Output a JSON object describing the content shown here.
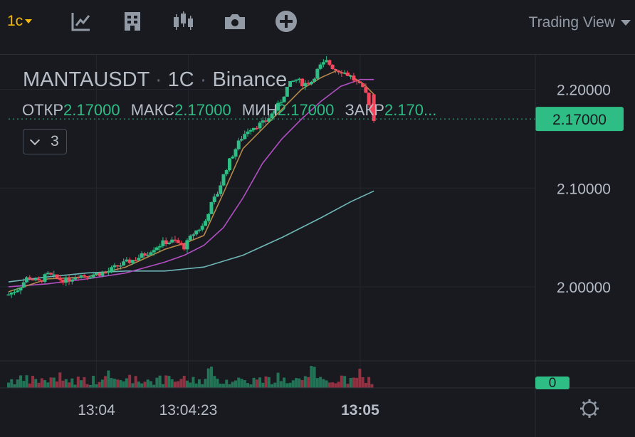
{
  "toolbar": {
    "timeframe": "1с",
    "icons": [
      "indicator-icon",
      "template-icon",
      "candle-type-icon",
      "camera-icon",
      "add-icon"
    ],
    "view_label": "Trading View"
  },
  "legend": {
    "symbol": "MANTAUSDT",
    "interval": "1С",
    "exchange": "Binance",
    "ohlc": [
      {
        "label": "ОТКР",
        "value": "2.17000"
      },
      {
        "label": "МАКС",
        "value": "2.17000"
      },
      {
        "label": "МИН",
        "value": "2.17000"
      },
      {
        "label": "ЗАКР",
        "value": "2.170..."
      }
    ],
    "indicator_count": "3"
  },
  "chart_data": {
    "type": "line",
    "y_ticks": [
      "2.20000",
      "2.10000",
      "2.00000"
    ],
    "ylim": [
      1.925,
      2.235
    ],
    "x_ticks": [
      {
        "label": "13:04",
        "x": 45
      },
      {
        "label": "13:04:23",
        "x": 92
      },
      {
        "label": "13:05",
        "x": 180
      }
    ],
    "xlim": [
      0,
      240
    ],
    "last_price": "2.17000",
    "volume_label": "0",
    "colors": {
      "up": "#2ebd85",
      "down": "#f6465d",
      "ma_fast": "#b5894a",
      "ma_mid": "#b14fc2",
      "ma_slow": "#6fb7b7"
    },
    "candles_window": {
      "start": 0,
      "end": 187
    },
    "price_path": [
      [
        0,
        1.992
      ],
      [
        5,
        1.998
      ],
      [
        10,
        2.01
      ],
      [
        15,
        2.004
      ],
      [
        20,
        2.012
      ],
      [
        25,
        2.008
      ],
      [
        30,
        2.006
      ],
      [
        35,
        2.012
      ],
      [
        40,
        2.011
      ],
      [
        45,
        2.013
      ],
      [
        50,
        2.014
      ],
      [
        55,
        2.02
      ],
      [
        60,
        2.024
      ],
      [
        65,
        2.028
      ],
      [
        70,
        2.033
      ],
      [
        75,
        2.04
      ],
      [
        80,
        2.045
      ],
      [
        85,
        2.046
      ],
      [
        90,
        2.04
      ],
      [
        95,
        2.055
      ],
      [
        100,
        2.062
      ],
      [
        103,
        2.08
      ],
      [
        107,
        2.095
      ],
      [
        111,
        2.118
      ],
      [
        115,
        2.135
      ],
      [
        119,
        2.15
      ],
      [
        123,
        2.16
      ],
      [
        127,
        2.163
      ],
      [
        131,
        2.166
      ],
      [
        135,
        2.175
      ],
      [
        139,
        2.186
      ],
      [
        143,
        2.203
      ],
      [
        147,
        2.21
      ],
      [
        151,
        2.205
      ],
      [
        155,
        2.208
      ],
      [
        159,
        2.222
      ],
      [
        163,
        2.228
      ],
      [
        167,
        2.22
      ],
      [
        171,
        2.218
      ],
      [
        175,
        2.213
      ],
      [
        179,
        2.205
      ],
      [
        183,
        2.195
      ],
      [
        187,
        2.17
      ]
    ],
    "ma_fast": [
      [
        0,
        1.995
      ],
      [
        20,
        2.008
      ],
      [
        40,
        2.01
      ],
      [
        60,
        2.02
      ],
      [
        80,
        2.038
      ],
      [
        90,
        2.044
      ],
      [
        100,
        2.052
      ],
      [
        110,
        2.095
      ],
      [
        120,
        2.14
      ],
      [
        130,
        2.16
      ],
      [
        140,
        2.18
      ],
      [
        150,
        2.2
      ],
      [
        160,
        2.212
      ],
      [
        168,
        2.219
      ],
      [
        175,
        2.214
      ],
      [
        182,
        2.205
      ],
      [
        187,
        2.195
      ]
    ],
    "ma_mid": [
      [
        0,
        2.0
      ],
      [
        20,
        2.003
      ],
      [
        40,
        2.008
      ],
      [
        60,
        2.014
      ],
      [
        80,
        2.025
      ],
      [
        90,
        2.032
      ],
      [
        100,
        2.042
      ],
      [
        110,
        2.06
      ],
      [
        120,
        2.09
      ],
      [
        130,
        2.125
      ],
      [
        140,
        2.15
      ],
      [
        150,
        2.17
      ],
      [
        160,
        2.188
      ],
      [
        170,
        2.203
      ],
      [
        180,
        2.21
      ],
      [
        187,
        2.21
      ]
    ],
    "ma_slow": [
      [
        0,
        2.005
      ],
      [
        20,
        2.01
      ],
      [
        40,
        2.014
      ],
      [
        60,
        2.016
      ],
      [
        80,
        2.016
      ],
      [
        100,
        2.02
      ],
      [
        120,
        2.032
      ],
      [
        140,
        2.05
      ],
      [
        160,
        2.07
      ],
      [
        175,
        2.086
      ],
      [
        187,
        2.097
      ]
    ],
    "volume_max": 1.0
  }
}
